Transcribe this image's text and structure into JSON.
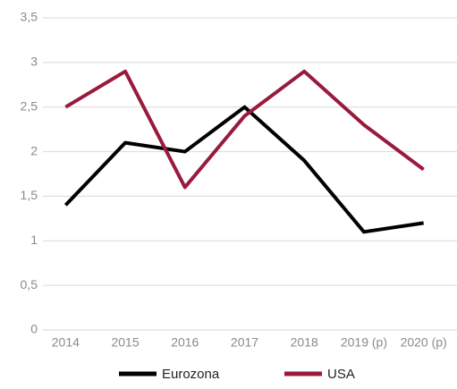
{
  "chart_data": {
    "type": "line",
    "categories": [
      "2014",
      "2015",
      "2016",
      "2017",
      "2018",
      "2019 (p)",
      "2020 (p)"
    ],
    "series": [
      {
        "name": "Eurozona",
        "color": "#000000",
        "values": [
          1.4,
          2.1,
          2.0,
          2.5,
          1.9,
          1.1,
          1.2
        ]
      },
      {
        "name": "USA",
        "color": "#981b3c",
        "values": [
          2.5,
          2.9,
          1.6,
          2.4,
          2.9,
          2.3,
          1.8
        ]
      }
    ],
    "ylim": [
      0,
      3.5
    ],
    "yticks": [
      0,
      {
        "value": 0.5,
        "label": "0,5"
      },
      1,
      {
        "value": 1.5,
        "label": "1,5"
      },
      2,
      {
        "value": 2.5,
        "label": "2,5"
      },
      3,
      {
        "value": 3.5,
        "label": "3,5"
      }
    ],
    "grid": true,
    "legend": "bottom"
  }
}
